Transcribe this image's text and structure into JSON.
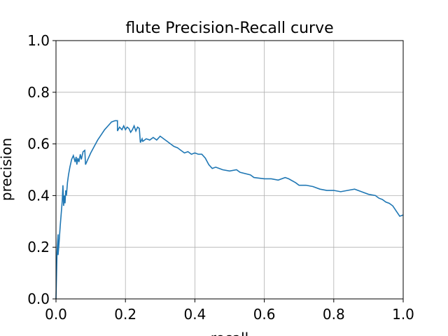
{
  "chart_data": {
    "type": "line",
    "title": "flute Precision-Recall curve",
    "xlabel": "recall",
    "ylabel": "precision",
    "xlim": [
      0.0,
      1.0
    ],
    "ylim": [
      0.0,
      1.0
    ],
    "x_ticks": [
      "0.0",
      "0.2",
      "0.4",
      "0.6",
      "0.8",
      "1.0"
    ],
    "y_ticks": [
      "0.0",
      "0.2",
      "0.4",
      "0.6",
      "0.8",
      "1.0"
    ],
    "grid": true,
    "line_color": "#1f77b4",
    "series": [
      {
        "x": [
          0.0,
          0.003,
          0.006,
          0.006,
          0.009,
          0.012,
          0.015,
          0.018,
          0.02,
          0.022,
          0.024,
          0.026,
          0.028,
          0.03,
          0.033,
          0.036,
          0.04,
          0.045,
          0.05,
          0.055,
          0.058,
          0.06,
          0.063,
          0.066,
          0.07,
          0.073,
          0.078,
          0.083,
          0.085,
          0.09,
          0.1,
          0.11,
          0.12,
          0.13,
          0.14,
          0.15,
          0.16,
          0.17,
          0.177,
          0.177,
          0.183,
          0.19,
          0.195,
          0.2,
          0.205,
          0.21,
          0.215,
          0.22,
          0.225,
          0.23,
          0.235,
          0.24,
          0.243,
          0.248,
          0.25,
          0.26,
          0.27,
          0.28,
          0.29,
          0.3,
          0.31,
          0.32,
          0.33,
          0.34,
          0.35,
          0.36,
          0.37,
          0.38,
          0.39,
          0.4,
          0.41,
          0.42,
          0.43,
          0.44,
          0.45,
          0.46,
          0.47,
          0.48,
          0.5,
          0.52,
          0.53,
          0.56,
          0.57,
          0.6,
          0.62,
          0.64,
          0.66,
          0.67,
          0.69,
          0.7,
          0.72,
          0.74,
          0.76,
          0.78,
          0.8,
          0.82,
          0.84,
          0.86,
          0.88,
          0.9,
          0.92,
          0.93,
          0.94,
          0.95,
          0.96,
          0.97,
          0.975,
          0.98,
          0.985,
          0.99,
          1.0
        ],
        "y": [
          0.0,
          0.18,
          0.25,
          0.17,
          0.22,
          0.28,
          0.33,
          0.38,
          0.44,
          0.36,
          0.4,
          0.37,
          0.42,
          0.4,
          0.45,
          0.48,
          0.51,
          0.54,
          0.555,
          0.53,
          0.55,
          0.52,
          0.545,
          0.53,
          0.56,
          0.54,
          0.57,
          0.575,
          0.52,
          0.535,
          0.565,
          0.59,
          0.615,
          0.635,
          0.655,
          0.67,
          0.685,
          0.69,
          0.69,
          0.65,
          0.665,
          0.655,
          0.67,
          0.655,
          0.665,
          0.66,
          0.645,
          0.655,
          0.67,
          0.65,
          0.665,
          0.66,
          0.605,
          0.62,
          0.61,
          0.62,
          0.615,
          0.625,
          0.615,
          0.63,
          0.62,
          0.61,
          0.6,
          0.59,
          0.585,
          0.575,
          0.565,
          0.57,
          0.56,
          0.565,
          0.56,
          0.56,
          0.545,
          0.52,
          0.505,
          0.51,
          0.505,
          0.5,
          0.495,
          0.5,
          0.49,
          0.48,
          0.47,
          0.465,
          0.465,
          0.46,
          0.47,
          0.465,
          0.45,
          0.44,
          0.44,
          0.435,
          0.425,
          0.42,
          0.42,
          0.415,
          0.42,
          0.425,
          0.415,
          0.405,
          0.4,
          0.39,
          0.385,
          0.375,
          0.37,
          0.36,
          0.35,
          0.34,
          0.33,
          0.32,
          0.325
        ]
      }
    ]
  }
}
